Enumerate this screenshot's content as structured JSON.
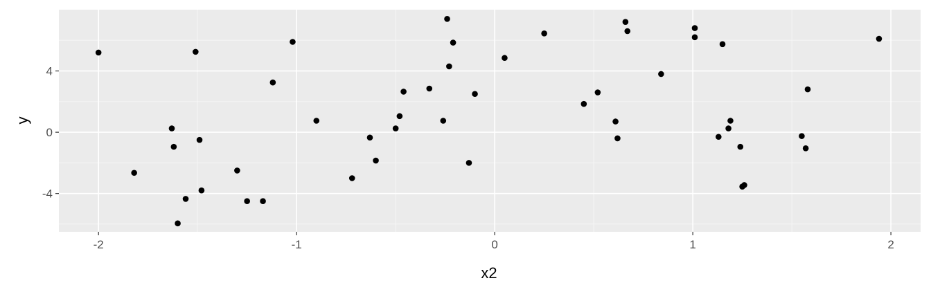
{
  "colors": {
    "panel_background": "#ebebeb",
    "grid_major": "#ffffff",
    "grid_minor": "#f5f5f5",
    "point": "#000000",
    "tick_label": "#4d4d4d",
    "tick_mark": "#333333"
  },
  "chart_data": {
    "type": "scatter",
    "title": "",
    "xlabel": "x2",
    "ylabel": "y",
    "xlim": [
      -2.2,
      2.15
    ],
    "ylim": [
      -6.5,
      8.0
    ],
    "x_ticks": [
      -2,
      -1,
      0,
      1,
      2
    ],
    "x_tick_labels": [
      "-2",
      "-1",
      "0",
      "1",
      "2"
    ],
    "y_ticks": [
      -4,
      0,
      4
    ],
    "y_tick_labels": [
      "-4",
      "0",
      "4"
    ],
    "grid": true,
    "legend": "none",
    "series": [
      {
        "points": [
          [
            -2.0,
            5.2
          ],
          [
            -1.82,
            -2.65
          ],
          [
            -1.63,
            0.25
          ],
          [
            -1.62,
            -0.95
          ],
          [
            -1.6,
            -5.95
          ],
          [
            -1.56,
            -4.35
          ],
          [
            -1.51,
            5.25
          ],
          [
            -1.49,
            -0.5
          ],
          [
            -1.48,
            -3.8
          ],
          [
            -1.3,
            -2.5
          ],
          [
            -1.25,
            -4.5
          ],
          [
            -1.17,
            -4.5
          ],
          [
            -1.12,
            3.25
          ],
          [
            -1.02,
            5.9
          ],
          [
            -0.9,
            0.75
          ],
          [
            -0.72,
            -3.0
          ],
          [
            -0.63,
            -0.35
          ],
          [
            -0.6,
            -1.85
          ],
          [
            -0.5,
            0.25
          ],
          [
            -0.48,
            1.05
          ],
          [
            -0.46,
            2.65
          ],
          [
            -0.33,
            2.85
          ],
          [
            -0.26,
            0.75
          ],
          [
            -0.24,
            7.4
          ],
          [
            -0.23,
            4.3
          ],
          [
            -0.21,
            5.85
          ],
          [
            -0.13,
            -2.0
          ],
          [
            -0.1,
            2.5
          ],
          [
            0.05,
            4.85
          ],
          [
            0.25,
            6.45
          ],
          [
            0.45,
            1.85
          ],
          [
            0.52,
            2.6
          ],
          [
            0.61,
            0.7
          ],
          [
            0.62,
            -0.4
          ],
          [
            0.66,
            7.2
          ],
          [
            0.67,
            6.6
          ],
          [
            0.84,
            3.8
          ],
          [
            1.01,
            6.8
          ],
          [
            1.01,
            6.2
          ],
          [
            1.13,
            -0.3
          ],
          [
            1.15,
            5.75
          ],
          [
            1.18,
            0.25
          ],
          [
            1.19,
            0.75
          ],
          [
            1.24,
            -0.95
          ],
          [
            1.25,
            -3.55
          ],
          [
            1.26,
            -3.45
          ],
          [
            1.55,
            -0.25
          ],
          [
            1.57,
            -1.05
          ],
          [
            1.58,
            2.8
          ],
          [
            1.94,
            6.1
          ]
        ]
      }
    ]
  }
}
